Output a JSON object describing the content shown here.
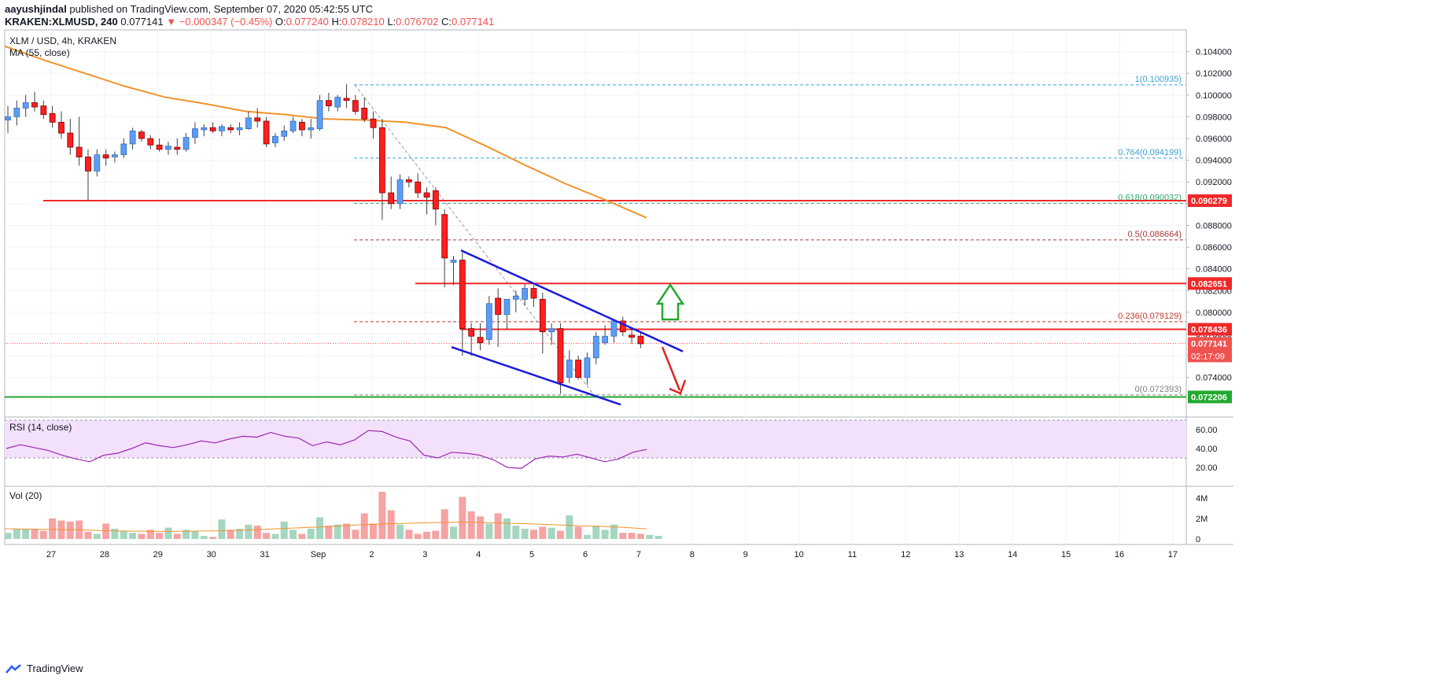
{
  "header": {
    "line1_user": "aayushjindal",
    "line1_rest": "published on TradingView.com, September 07, 2020 05:42:55 UTC",
    "symbol": "KRAKEN:XLMUSD, 240",
    "last": "0.077141",
    "change": "▼ −0.000347 (−0.45%)",
    "o_label": "O:",
    "o_val": "0.077240",
    "h_label": "H:",
    "h_val": "0.078210",
    "l_label": "L:",
    "l_val": "0.076702",
    "c_label": "C:",
    "c_val": "0.077141"
  },
  "footer": {
    "brand": "TradingView"
  },
  "chart_data": {
    "type": "candlestick",
    "title": "XLM / USD, 4h, KRAKEN",
    "indicator_label": "MA (55, close)",
    "ylim": [
      0.0705,
      0.106
    ],
    "y_ticks": [
      "0.104000",
      "0.102000",
      "0.100000",
      "0.098000",
      "0.096000",
      "0.094000",
      "0.092000",
      "0.090000",
      "0.088000",
      "0.086000",
      "0.084000",
      "0.082000",
      "0.080000",
      "0.078000",
      "0.076000",
      "0.074000"
    ],
    "x_ticks": [
      "27",
      "28",
      "29",
      "30",
      "31",
      "Sep",
      "2",
      "3",
      "4",
      "5",
      "6",
      "7",
      "8",
      "9",
      "10",
      "11",
      "12",
      "13",
      "14",
      "15",
      "16",
      "17"
    ],
    "candles": [
      [
        0.0977,
        0.099,
        0.0965,
        0.098
      ],
      [
        0.098,
        0.0995,
        0.0972,
        0.0988
      ],
      [
        0.0988,
        0.1,
        0.098,
        0.0993
      ],
      [
        0.0993,
        0.1003,
        0.0985,
        0.0989
      ],
      [
        0.099,
        0.0995,
        0.0978,
        0.0982
      ],
      [
        0.0983,
        0.099,
        0.097,
        0.0975
      ],
      [
        0.0975,
        0.0985,
        0.096,
        0.0965
      ],
      [
        0.0965,
        0.0978,
        0.0945,
        0.0952
      ],
      [
        0.0952,
        0.098,
        0.0935,
        0.0943
      ],
      [
        0.0943,
        0.095,
        0.0903,
        0.093
      ],
      [
        0.093,
        0.095,
        0.0925,
        0.0945
      ],
      [
        0.0945,
        0.095,
        0.0935,
        0.0942
      ],
      [
        0.0943,
        0.0948,
        0.0938,
        0.0945
      ],
      [
        0.0945,
        0.096,
        0.0942,
        0.0955
      ],
      [
        0.0955,
        0.097,
        0.095,
        0.0967
      ],
      [
        0.0966,
        0.0968,
        0.0957,
        0.096
      ],
      [
        0.096,
        0.0963,
        0.095,
        0.0954
      ],
      [
        0.0954,
        0.096,
        0.0948,
        0.095
      ],
      [
        0.095,
        0.0957,
        0.0945,
        0.0953
      ],
      [
        0.0952,
        0.096,
        0.0945,
        0.095
      ],
      [
        0.095,
        0.0965,
        0.0948,
        0.0961
      ],
      [
        0.0961,
        0.0975,
        0.0955,
        0.0969
      ],
      [
        0.0968,
        0.0973,
        0.0962,
        0.097
      ],
      [
        0.097,
        0.0975,
        0.0965,
        0.0967
      ],
      [
        0.0967,
        0.0973,
        0.0962,
        0.0971
      ],
      [
        0.097,
        0.0973,
        0.0965,
        0.0968
      ],
      [
        0.0968,
        0.0975,
        0.0963,
        0.097
      ],
      [
        0.0969,
        0.0985,
        0.0968,
        0.0979
      ],
      [
        0.0979,
        0.0988,
        0.097,
        0.0976
      ],
      [
        0.0976,
        0.098,
        0.0952,
        0.0955
      ],
      [
        0.0956,
        0.0965,
        0.0952,
        0.0962
      ],
      [
        0.0962,
        0.0972,
        0.0958,
        0.0967
      ],
      [
        0.0967,
        0.098,
        0.0965,
        0.0976
      ],
      [
        0.0975,
        0.0978,
        0.0962,
        0.0968
      ],
      [
        0.0968,
        0.0978,
        0.096,
        0.097
      ],
      [
        0.0969,
        0.1,
        0.0967,
        0.0995
      ],
      [
        0.0995,
        0.1002,
        0.0985,
        0.099
      ],
      [
        0.0989,
        0.1,
        0.0985,
        0.0998
      ],
      [
        0.0997,
        0.101,
        0.0988,
        0.0995
      ],
      [
        0.0995,
        0.1,
        0.0982,
        0.0985
      ],
      [
        0.0988,
        0.0998,
        0.0975,
        0.0978
      ],
      [
        0.0978,
        0.0985,
        0.096,
        0.097
      ],
      [
        0.097,
        0.0978,
        0.0885,
        0.091
      ],
      [
        0.091,
        0.0925,
        0.0895,
        0.09
      ],
      [
        0.09,
        0.0927,
        0.0895,
        0.0922
      ],
      [
        0.0922,
        0.0925,
        0.0915,
        0.092
      ],
      [
        0.092,
        0.0928,
        0.0905,
        0.091
      ],
      [
        0.091,
        0.0915,
        0.089,
        0.0906
      ],
      [
        0.0912,
        0.0915,
        0.088,
        0.0895
      ],
      [
        0.089,
        0.0895,
        0.0823,
        0.085
      ],
      [
        0.0846,
        0.0852,
        0.0825,
        0.0848
      ],
      [
        0.0848,
        0.0855,
        0.076,
        0.0785
      ],
      [
        0.0785,
        0.079,
        0.076,
        0.0778
      ],
      [
        0.0777,
        0.079,
        0.0765,
        0.0772
      ],
      [
        0.0775,
        0.0815,
        0.077,
        0.0808
      ],
      [
        0.0813,
        0.0822,
        0.0768,
        0.0798
      ],
      [
        0.0798,
        0.0812,
        0.0785,
        0.0812
      ],
      [
        0.0812,
        0.082,
        0.08,
        0.0815
      ],
      [
        0.0812,
        0.0826,
        0.0806,
        0.0822
      ],
      [
        0.0822,
        0.0825,
        0.0805,
        0.0813
      ],
      [
        0.0812,
        0.0818,
        0.0762,
        0.0782
      ],
      [
        0.0782,
        0.079,
        0.077,
        0.0785
      ],
      [
        0.0785,
        0.079,
        0.0725,
        0.0735
      ],
      [
        0.074,
        0.0765,
        0.0735,
        0.0756
      ],
      [
        0.0756,
        0.076,
        0.0738,
        0.074
      ],
      [
        0.074,
        0.0763,
        0.0733,
        0.0758
      ],
      [
        0.0758,
        0.0782,
        0.0752,
        0.0778
      ],
      [
        0.0772,
        0.0788,
        0.077,
        0.0778
      ],
      [
        0.0778,
        0.0792,
        0.0772,
        0.0792
      ],
      [
        0.0792,
        0.0796,
        0.0778,
        0.0782
      ],
      [
        0.0779,
        0.0786,
        0.0771,
        0.0777
      ],
      [
        0.0778,
        0.0782,
        0.0767,
        0.0771
      ]
    ],
    "ma55": [
      0.1045,
      0.1032,
      0.102,
      0.1008,
      0.0998,
      0.0992,
      0.0985,
      0.0982,
      0.0978,
      0.0977,
      0.0975,
      0.097,
      0.0953,
      0.0935,
      0.0918,
      0.0903,
      0.0887
    ],
    "horizontal_levels": [
      {
        "value": 0.090279,
        "label": "0.090279",
        "color": "#ef2929"
      },
      {
        "value": 0.082651,
        "label": "0.082651",
        "color": "#ef2929"
      },
      {
        "value": 0.078436,
        "label": "0.078436",
        "color": "#ef2929"
      },
      {
        "value": 0.072206,
        "label": "0.072206",
        "color": "#22a92f"
      }
    ],
    "last_price": {
      "value": 0.077141,
      "label": "0.077141",
      "countdown": "02:17:09"
    },
    "fibonacci": [
      {
        "ratio": "1",
        "value": 0.100935,
        "label": "1(0.100935)",
        "color": "#3aa0d2"
      },
      {
        "ratio": "0.764",
        "value": 0.094199,
        "label": "0.764(0.094199)",
        "color": "#3aa0d2"
      },
      {
        "ratio": "0.618",
        "value": 0.090032,
        "label": "0.618(0.090032)",
        "color": "#2fa86f"
      },
      {
        "ratio": "0.5",
        "value": 0.086664,
        "label": "0.5(0.086664)",
        "color": "#a33c3c"
      },
      {
        "ratio": "0.236",
        "value": 0.079129,
        "label": "0.236(0.079129)",
        "color": "#c0392b"
      },
      {
        "ratio": "0",
        "value": 0.072393,
        "label": "0(0.072393)",
        "color": "#808080"
      }
    ],
    "channel": {
      "upper": [
        [
          0.0857
        ],
        [
          0.0764
        ]
      ],
      "lower": [
        [
          0.0768
        ],
        [
          0.0715
        ]
      ],
      "color": "#1a1adb"
    },
    "rsi": {
      "label": "RSI (14, close)",
      "ticks": [
        "60.00",
        "40.00",
        "20.00"
      ],
      "band": [
        30,
        70
      ],
      "values": [
        40,
        44,
        41,
        38,
        33,
        29,
        26,
        33,
        35,
        40,
        46,
        43,
        41,
        44,
        48,
        46,
        50,
        53,
        52,
        57,
        53,
        51,
        43,
        47,
        44,
        49,
        59,
        58,
        52,
        48,
        33,
        30,
        36,
        35,
        33,
        28,
        20,
        19,
        29,
        32,
        31,
        34,
        30,
        26,
        29,
        36,
        39
      ]
    },
    "volume": {
      "label": "Vol (20)",
      "ticks": [
        "4M",
        "2M",
        "0"
      ],
      "ylim": [
        0,
        4.6
      ],
      "values": [
        0.6,
        1.0,
        1.0,
        1.0,
        0.8,
        2.0,
        1.8,
        1.7,
        1.8,
        0.7,
        0.5,
        1.5,
        1.0,
        0.8,
        0.6,
        0.5,
        0.9,
        0.6,
        1.1,
        0.5,
        0.9,
        0.8,
        0.3,
        0.2,
        1.9,
        0.9,
        1.0,
        1.4,
        1.3,
        0.6,
        0.5,
        1.7,
        0.9,
        0.5,
        1.0,
        2.1,
        1.3,
        1.4,
        1.5,
        0.9,
        2.5,
        1.5,
        4.6,
        2.8,
        1.4,
        0.9,
        0.5,
        0.7,
        0.8,
        2.9,
        1.2,
        4.1,
        2.7,
        2.2,
        1.5,
        2.5,
        2.0,
        1.3,
        1.0,
        0.9,
        1.2,
        1.1,
        0.8,
        2.3,
        1.2,
        0.4,
        1.3,
        0.9,
        1.4,
        0.6,
        0.6,
        0.5,
        0.4,
        0.3
      ],
      "ma": [
        1.0,
        0.95,
        0.9,
        0.8,
        0.75,
        0.75,
        0.8,
        0.9,
        1.05,
        1.2,
        1.4,
        1.5,
        1.6,
        1.65,
        1.55,
        1.45,
        1.3,
        1.2,
        1.0
      ]
    }
  }
}
